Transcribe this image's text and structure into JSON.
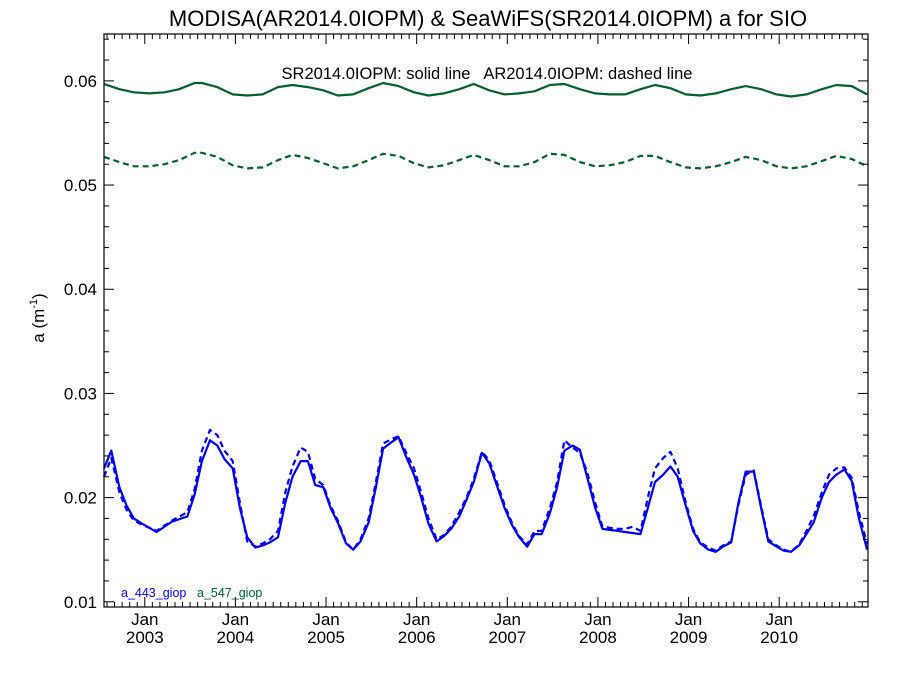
{
  "chart_data": {
    "type": "line",
    "title": "MODISA(AR2014.0IOPM) & SeaWiFS(SR2014.0IOPM)  a for SIO",
    "ylabel_base": "a (m",
    "ylabel_sup": "-1",
    "ylabel_close": ")",
    "annotation": "SR2014.0IOPM: solid line   AR2014.0IOPM: dashed line",
    "xlim": [
      2002.55,
      2010.98
    ],
    "ylim": [
      0.0095,
      0.0645
    ],
    "yticks": [
      {
        "value": 0.01,
        "label": "0.01"
      },
      {
        "value": 0.02,
        "label": "0.02"
      },
      {
        "value": 0.03,
        "label": "0.03"
      },
      {
        "value": 0.04,
        "label": "0.04"
      },
      {
        "value": 0.05,
        "label": "0.05"
      },
      {
        "value": 0.06,
        "label": "0.06"
      }
    ],
    "xticks": [
      {
        "value": 2003.0,
        "month": "Jan",
        "year": "2003"
      },
      {
        "value": 2004.0,
        "month": "Jan",
        "year": "2004"
      },
      {
        "value": 2005.0,
        "month": "Jan",
        "year": "2005"
      },
      {
        "value": 2006.0,
        "month": "Jan",
        "year": "2006"
      },
      {
        "value": 2007.0,
        "month": "Jan",
        "year": "2007"
      },
      {
        "value": 2008.0,
        "month": "Jan",
        "year": "2008"
      },
      {
        "value": 2009.0,
        "month": "Jan",
        "year": "2009"
      },
      {
        "value": 2010.0,
        "month": "Jan",
        "year": "2010"
      }
    ],
    "legend": [
      {
        "label": "a_443_giop",
        "color": "#0000ee"
      },
      {
        "label": "a_547_giop",
        "color": "#006030"
      }
    ],
    "series": [
      {
        "name": "a_443_giop",
        "product": "SR2014.0IOPM",
        "style": "solid",
        "color": "#0000ee",
        "x": [
          2002.55,
          2002.63,
          2002.72,
          2002.8,
          2002.88,
          2002.97,
          2003.13,
          2003.3,
          2003.47,
          2003.55,
          2003.63,
          2003.72,
          2003.8,
          2003.88,
          2003.97,
          2004.05,
          2004.13,
          2004.22,
          2004.3,
          2004.38,
          2004.47,
          2004.55,
          2004.63,
          2004.72,
          2004.8,
          2004.88,
          2004.97,
          2005.05,
          2005.13,
          2005.22,
          2005.3,
          2005.38,
          2005.47,
          2005.55,
          2005.63,
          2005.72,
          2005.8,
          2005.88,
          2005.97,
          2006.05,
          2006.13,
          2006.22,
          2006.3,
          2006.38,
          2006.47,
          2006.55,
          2006.63,
          2006.72,
          2006.8,
          2006.88,
          2006.97,
          2007.05,
          2007.13,
          2007.22,
          2007.3,
          2007.38,
          2007.47,
          2007.55,
          2007.63,
          2007.72,
          2007.8,
          2007.88,
          2007.97,
          2008.05,
          2008.13,
          2008.22,
          2008.3,
          2008.38,
          2008.47,
          2008.55,
          2008.63,
          2008.72,
          2008.8,
          2008.88,
          2008.97,
          2009.05,
          2009.13,
          2009.22,
          2009.3,
          2009.38,
          2009.47,
          2009.55,
          2009.63,
          2009.72,
          2009.8,
          2009.88,
          2009.97,
          2010.05,
          2010.13,
          2010.22,
          2010.3,
          2010.38,
          2010.47,
          2010.55,
          2010.63,
          2010.72,
          2010.8,
          2010.88,
          2010.97
        ],
        "values": [
          0.0228,
          0.0245,
          0.021,
          0.0192,
          0.018,
          0.0175,
          0.0167,
          0.0177,
          0.0182,
          0.0203,
          0.0235,
          0.0255,
          0.025,
          0.0237,
          0.0228,
          0.019,
          0.0162,
          0.0152,
          0.0154,
          0.0157,
          0.0162,
          0.0195,
          0.022,
          0.0235,
          0.0235,
          0.0212,
          0.021,
          0.019,
          0.0176,
          0.0156,
          0.015,
          0.0158,
          0.0176,
          0.021,
          0.0247,
          0.0253,
          0.0258,
          0.024,
          0.0222,
          0.02,
          0.0175,
          0.0158,
          0.0163,
          0.017,
          0.0182,
          0.0198,
          0.0215,
          0.0243,
          0.0233,
          0.0213,
          0.019,
          0.0174,
          0.0162,
          0.0153,
          0.0165,
          0.0165,
          0.0185,
          0.021,
          0.0245,
          0.025,
          0.0246,
          0.022,
          0.019,
          0.017,
          0.0169,
          0.0168,
          0.0167,
          0.0166,
          0.0165,
          0.019,
          0.0215,
          0.0222,
          0.023,
          0.022,
          0.0192,
          0.0168,
          0.0156,
          0.015,
          0.0148,
          0.0153,
          0.0157,
          0.0195,
          0.0225,
          0.0225,
          0.019,
          0.0158,
          0.0153,
          0.0149,
          0.0148,
          0.0154,
          0.0165,
          0.0176,
          0.02,
          0.0215,
          0.0222,
          0.0227,
          0.0216,
          0.018,
          0.015
        ]
      },
      {
        "name": "a_443_giop",
        "product": "AR2014.0IOPM",
        "style": "dashed",
        "color": "#0000ee",
        "x": [
          2002.55,
          2002.63,
          2002.72,
          2002.8,
          2002.88,
          2002.97,
          2003.13,
          2003.3,
          2003.47,
          2003.55,
          2003.63,
          2003.72,
          2003.8,
          2003.88,
          2003.97,
          2004.05,
          2004.13,
          2004.22,
          2004.3,
          2004.38,
          2004.47,
          2004.55,
          2004.63,
          2004.72,
          2004.8,
          2004.88,
          2004.97,
          2005.05,
          2005.13,
          2005.22,
          2005.3,
          2005.38,
          2005.47,
          2005.55,
          2005.63,
          2005.72,
          2005.8,
          2005.88,
          2005.97,
          2006.05,
          2006.13,
          2006.22,
          2006.3,
          2006.38,
          2006.47,
          2006.55,
          2006.63,
          2006.72,
          2006.8,
          2006.88,
          2006.97,
          2007.05,
          2007.13,
          2007.22,
          2007.3,
          2007.38,
          2007.47,
          2007.55,
          2007.63,
          2007.72,
          2007.8,
          2007.88,
          2007.97,
          2008.05,
          2008.13,
          2008.22,
          2008.3,
          2008.38,
          2008.47,
          2008.55,
          2008.63,
          2008.72,
          2008.8,
          2008.88,
          2008.97,
          2009.05,
          2009.13,
          2009.22,
          2009.3,
          2009.38,
          2009.47,
          2009.55,
          2009.63,
          2009.72,
          2009.8,
          2009.88,
          2009.97,
          2010.05,
          2010.13,
          2010.22,
          2010.3,
          2010.38,
          2010.47,
          2010.55,
          2010.63,
          2010.72,
          2010.8,
          2010.88,
          2010.97
        ],
        "values": [
          0.022,
          0.0238,
          0.0205,
          0.0188,
          0.0178,
          0.0174,
          0.0168,
          0.0178,
          0.0186,
          0.0208,
          0.0245,
          0.0265,
          0.026,
          0.0245,
          0.0235,
          0.0195,
          0.0158,
          0.0153,
          0.0156,
          0.016,
          0.0168,
          0.0205,
          0.023,
          0.0248,
          0.0244,
          0.0218,
          0.0212,
          0.0192,
          0.0178,
          0.0157,
          0.015,
          0.016,
          0.018,
          0.0215,
          0.0252,
          0.0256,
          0.0259,
          0.0244,
          0.0228,
          0.0205,
          0.018,
          0.016,
          0.0164,
          0.0172,
          0.0186,
          0.02,
          0.0218,
          0.0244,
          0.0236,
          0.0216,
          0.0193,
          0.0176,
          0.0163,
          0.0155,
          0.0168,
          0.0168,
          0.019,
          0.0215,
          0.0255,
          0.0248,
          0.0243,
          0.0225,
          0.0195,
          0.0172,
          0.0171,
          0.017,
          0.017,
          0.0172,
          0.0168,
          0.02,
          0.0228,
          0.0238,
          0.0244,
          0.0228,
          0.0195,
          0.017,
          0.0157,
          0.0152,
          0.0149,
          0.0154,
          0.0158,
          0.0193,
          0.0222,
          0.0226,
          0.0192,
          0.016,
          0.0154,
          0.015,
          0.0148,
          0.0155,
          0.0168,
          0.0182,
          0.0205,
          0.0222,
          0.0228,
          0.0229,
          0.0219,
          0.0186,
          0.0155
        ]
      },
      {
        "name": "a_547_giop",
        "product": "SR2014.0IOPM",
        "style": "solid",
        "color": "#006030",
        "x": [
          2002.55,
          2002.72,
          2002.88,
          2003.05,
          2003.22,
          2003.38,
          2003.55,
          2003.63,
          2003.8,
          2003.97,
          2004.13,
          2004.3,
          2004.47,
          2004.63,
          2004.8,
          2004.97,
          2005.13,
          2005.3,
          2005.47,
          2005.63,
          2005.8,
          2005.97,
          2006.13,
          2006.3,
          2006.47,
          2006.63,
          2006.8,
          2006.97,
          2007.13,
          2007.3,
          2007.47,
          2007.63,
          2007.8,
          2007.97,
          2008.13,
          2008.3,
          2008.47,
          2008.63,
          2008.8,
          2008.97,
          2009.13,
          2009.3,
          2009.47,
          2009.63,
          2009.8,
          2009.97,
          2010.13,
          2010.3,
          2010.47,
          2010.63,
          2010.8,
          2010.97
        ],
        "values": [
          0.0597,
          0.0592,
          0.0589,
          0.0588,
          0.0589,
          0.0592,
          0.0598,
          0.0598,
          0.0594,
          0.0587,
          0.0586,
          0.0587,
          0.0594,
          0.0596,
          0.0594,
          0.0591,
          0.0586,
          0.0587,
          0.0593,
          0.0598,
          0.0595,
          0.0589,
          0.0586,
          0.0588,
          0.0592,
          0.0597,
          0.0591,
          0.0587,
          0.0588,
          0.059,
          0.0596,
          0.0597,
          0.0592,
          0.0588,
          0.0587,
          0.0587,
          0.0592,
          0.0596,
          0.0593,
          0.0587,
          0.0586,
          0.0588,
          0.0592,
          0.0595,
          0.0592,
          0.0587,
          0.0585,
          0.0587,
          0.0592,
          0.0596,
          0.0595,
          0.0587
        ]
      },
      {
        "name": "a_547_giop",
        "product": "AR2014.0IOPM",
        "style": "dashed",
        "color": "#006030",
        "x": [
          2002.55,
          2002.72,
          2002.88,
          2003.05,
          2003.22,
          2003.38,
          2003.55,
          2003.63,
          2003.8,
          2003.97,
          2004.13,
          2004.3,
          2004.47,
          2004.63,
          2004.8,
          2004.97,
          2005.13,
          2005.3,
          2005.47,
          2005.63,
          2005.8,
          2005.97,
          2006.13,
          2006.3,
          2006.47,
          2006.63,
          2006.8,
          2006.97,
          2007.13,
          2007.3,
          2007.47,
          2007.63,
          2007.8,
          2007.97,
          2008.13,
          2008.3,
          2008.47,
          2008.63,
          2008.8,
          2008.97,
          2009.13,
          2009.3,
          2009.47,
          2009.63,
          2009.8,
          2009.97,
          2010.13,
          2010.3,
          2010.47,
          2010.63,
          2010.8,
          2010.97
        ],
        "values": [
          0.0527,
          0.0522,
          0.0518,
          0.0518,
          0.052,
          0.0524,
          0.0531,
          0.0531,
          0.0527,
          0.0519,
          0.0516,
          0.0517,
          0.0524,
          0.0529,
          0.0526,
          0.0521,
          0.0516,
          0.0518,
          0.0524,
          0.053,
          0.0528,
          0.0521,
          0.0517,
          0.0519,
          0.0524,
          0.0529,
          0.0524,
          0.0518,
          0.0518,
          0.0522,
          0.053,
          0.0529,
          0.0522,
          0.0518,
          0.0519,
          0.0522,
          0.0528,
          0.0528,
          0.0522,
          0.0517,
          0.0516,
          0.0518,
          0.0522,
          0.0527,
          0.0524,
          0.0518,
          0.0516,
          0.0518,
          0.0523,
          0.0528,
          0.0525,
          0.0518
        ]
      }
    ]
  }
}
